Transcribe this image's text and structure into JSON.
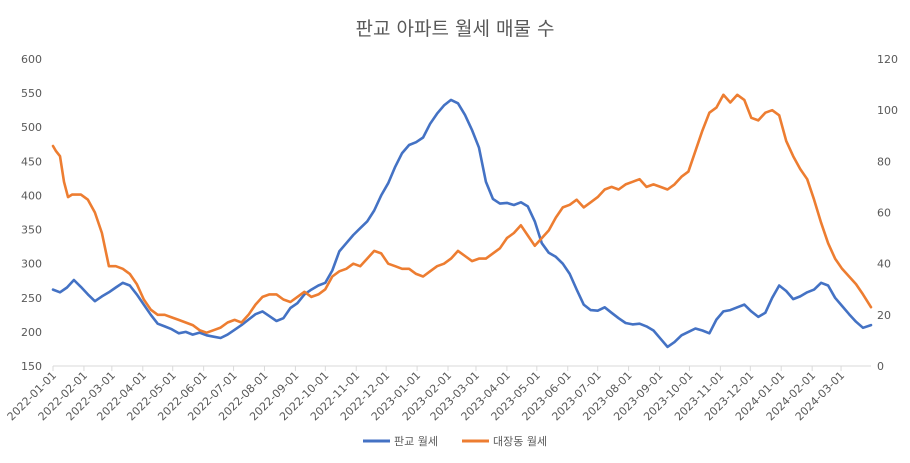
{
  "chart_data": {
    "type": "line",
    "title": "판교 아파트 월세 매물 수",
    "x_start": "2022-01-01",
    "x_end": "2024-03-31",
    "x_tick_labels": [
      "2022-01-01",
      "2022-02-01",
      "2022-03-01",
      "2022-04-01",
      "2022-05-01",
      "2022-06-01",
      "2022-07-01",
      "2022-08-01",
      "2022-09-01",
      "2022-10-01",
      "2022-11-01",
      "2022-12-01",
      "2023-01-01",
      "2023-02-01",
      "2023-03-01",
      "2023-04-01",
      "2023-05-01",
      "2023-06-01",
      "2023-07-01",
      "2023-08-01",
      "2023-09-01",
      "2023-10-01",
      "2023-11-01",
      "2023-12-01",
      "2024-01-01",
      "2024-02-01",
      "2024-03-01"
    ],
    "y_left": {
      "min": 150,
      "max": 600,
      "ticks": [
        150,
        200,
        250,
        300,
        350,
        400,
        450,
        500,
        550,
        600
      ]
    },
    "y_right": {
      "min": 0,
      "max": 120,
      "ticks": [
        0,
        20,
        40,
        60,
        80,
        100,
        120
      ]
    },
    "grid": false,
    "legend_position": "bottom",
    "series": [
      {
        "name": "판교 월세",
        "axis": "left",
        "color": "#4472C4",
        "points": [
          [
            "2022-01-01",
            262
          ],
          [
            "2022-01-08",
            258
          ],
          [
            "2022-01-15",
            265
          ],
          [
            "2022-01-22",
            276
          ],
          [
            "2022-01-29",
            266
          ],
          [
            "2022-02-05",
            255
          ],
          [
            "2022-02-12",
            245
          ],
          [
            "2022-02-19",
            252
          ],
          [
            "2022-02-26",
            258
          ],
          [
            "2022-03-05",
            265
          ],
          [
            "2022-03-12",
            272
          ],
          [
            "2022-03-19",
            268
          ],
          [
            "2022-03-26",
            255
          ],
          [
            "2022-04-02",
            240
          ],
          [
            "2022-04-09",
            225
          ],
          [
            "2022-04-16",
            212
          ],
          [
            "2022-04-23",
            208
          ],
          [
            "2022-04-30",
            204
          ],
          [
            "2022-05-07",
            198
          ],
          [
            "2022-05-14",
            200
          ],
          [
            "2022-05-21",
            196
          ],
          [
            "2022-05-28",
            199
          ],
          [
            "2022-06-04",
            195
          ],
          [
            "2022-06-11",
            193
          ],
          [
            "2022-06-18",
            191
          ],
          [
            "2022-06-25",
            196
          ],
          [
            "2022-07-02",
            203
          ],
          [
            "2022-07-09",
            210
          ],
          [
            "2022-07-16",
            218
          ],
          [
            "2022-07-23",
            226
          ],
          [
            "2022-07-30",
            230
          ],
          [
            "2022-08-06",
            223
          ],
          [
            "2022-08-13",
            216
          ],
          [
            "2022-08-20",
            220
          ],
          [
            "2022-08-27",
            235
          ],
          [
            "2022-09-03",
            242
          ],
          [
            "2022-09-10",
            255
          ],
          [
            "2022-09-17",
            262
          ],
          [
            "2022-09-24",
            268
          ],
          [
            "2022-10-01",
            272
          ],
          [
            "2022-10-08",
            290
          ],
          [
            "2022-10-15",
            318
          ],
          [
            "2022-10-22",
            330
          ],
          [
            "2022-10-29",
            342
          ],
          [
            "2022-11-05",
            352
          ],
          [
            "2022-11-12",
            362
          ],
          [
            "2022-11-19",
            378
          ],
          [
            "2022-11-26",
            400
          ],
          [
            "2022-12-03",
            418
          ],
          [
            "2022-12-10",
            442
          ],
          [
            "2022-12-17",
            462
          ],
          [
            "2022-12-24",
            474
          ],
          [
            "2022-12-31",
            478
          ],
          [
            "2023-01-07",
            485
          ],
          [
            "2023-01-14",
            505
          ],
          [
            "2023-01-21",
            520
          ],
          [
            "2023-01-28",
            532
          ],
          [
            "2023-02-04",
            540
          ],
          [
            "2023-02-11",
            535
          ],
          [
            "2023-02-18",
            518
          ],
          [
            "2023-02-25",
            496
          ],
          [
            "2023-03-04",
            470
          ],
          [
            "2023-03-11",
            420
          ],
          [
            "2023-03-18",
            395
          ],
          [
            "2023-03-25",
            388
          ],
          [
            "2023-04-01",
            389
          ],
          [
            "2023-04-08",
            386
          ],
          [
            "2023-04-15",
            390
          ],
          [
            "2023-04-22",
            384
          ],
          [
            "2023-04-29",
            362
          ],
          [
            "2023-05-06",
            330
          ],
          [
            "2023-05-13",
            316
          ],
          [
            "2023-05-20",
            310
          ],
          [
            "2023-05-27",
            300
          ],
          [
            "2023-06-03",
            285
          ],
          [
            "2023-06-10",
            262
          ],
          [
            "2023-06-17",
            240
          ],
          [
            "2023-06-24",
            232
          ],
          [
            "2023-07-01",
            231
          ],
          [
            "2023-07-08",
            236
          ],
          [
            "2023-07-15",
            228
          ],
          [
            "2023-07-22",
            220
          ],
          [
            "2023-07-29",
            213
          ],
          [
            "2023-08-05",
            211
          ],
          [
            "2023-08-12",
            212
          ],
          [
            "2023-08-19",
            208
          ],
          [
            "2023-08-26",
            202
          ],
          [
            "2023-09-02",
            190
          ],
          [
            "2023-09-09",
            178
          ],
          [
            "2023-09-16",
            185
          ],
          [
            "2023-09-23",
            195
          ],
          [
            "2023-09-30",
            200
          ],
          [
            "2023-10-07",
            205
          ],
          [
            "2023-10-14",
            202
          ],
          [
            "2023-10-21",
            198
          ],
          [
            "2023-10-28",
            218
          ],
          [
            "2023-11-04",
            230
          ],
          [
            "2023-11-11",
            232
          ],
          [
            "2023-11-18",
            236
          ],
          [
            "2023-11-25",
            240
          ],
          [
            "2023-12-02",
            230
          ],
          [
            "2023-12-09",
            222
          ],
          [
            "2023-12-16",
            228
          ],
          [
            "2023-12-23",
            250
          ],
          [
            "2023-12-30",
            268
          ],
          [
            "2024-01-06",
            260
          ],
          [
            "2024-01-13",
            248
          ],
          [
            "2024-01-20",
            252
          ],
          [
            "2024-01-27",
            258
          ],
          [
            "2024-02-03",
            262
          ],
          [
            "2024-02-10",
            272
          ],
          [
            "2024-02-17",
            268
          ],
          [
            "2024-02-24",
            250
          ],
          [
            "2024-03-02",
            238
          ],
          [
            "2024-03-09",
            226
          ],
          [
            "2024-03-16",
            215
          ],
          [
            "2024-03-23",
            206
          ],
          [
            "2024-03-31",
            210
          ]
        ]
      },
      {
        "name": "대장동 월세",
        "axis": "right",
        "color": "#ED7D31",
        "points": [
          [
            "2022-01-01",
            86
          ],
          [
            "2022-01-04",
            84
          ],
          [
            "2022-01-08",
            82
          ],
          [
            "2022-01-12",
            72
          ],
          [
            "2022-01-16",
            66
          ],
          [
            "2022-01-20",
            67
          ],
          [
            "2022-01-29",
            67
          ],
          [
            "2022-02-05",
            65
          ],
          [
            "2022-02-12",
            60
          ],
          [
            "2022-02-19",
            52
          ],
          [
            "2022-02-26",
            39
          ],
          [
            "2022-03-05",
            39
          ],
          [
            "2022-03-12",
            38
          ],
          [
            "2022-03-19",
            36
          ],
          [
            "2022-03-26",
            32
          ],
          [
            "2022-04-02",
            26
          ],
          [
            "2022-04-09",
            22
          ],
          [
            "2022-04-16",
            20
          ],
          [
            "2022-04-23",
            20
          ],
          [
            "2022-04-30",
            19
          ],
          [
            "2022-05-07",
            18
          ],
          [
            "2022-05-14",
            17
          ],
          [
            "2022-05-21",
            16
          ],
          [
            "2022-05-28",
            14
          ],
          [
            "2022-06-04",
            13
          ],
          [
            "2022-06-11",
            14
          ],
          [
            "2022-06-18",
            15
          ],
          [
            "2022-06-25",
            17
          ],
          [
            "2022-07-02",
            18
          ],
          [
            "2022-07-09",
            17
          ],
          [
            "2022-07-16",
            20
          ],
          [
            "2022-07-23",
            24
          ],
          [
            "2022-07-30",
            27
          ],
          [
            "2022-08-06",
            28
          ],
          [
            "2022-08-13",
            28
          ],
          [
            "2022-08-20",
            26
          ],
          [
            "2022-08-27",
            25
          ],
          [
            "2022-09-03",
            27
          ],
          [
            "2022-09-10",
            29
          ],
          [
            "2022-09-17",
            27
          ],
          [
            "2022-09-24",
            28
          ],
          [
            "2022-10-01",
            30
          ],
          [
            "2022-10-08",
            35
          ],
          [
            "2022-10-15",
            37
          ],
          [
            "2022-10-22",
            38
          ],
          [
            "2022-10-29",
            40
          ],
          [
            "2022-11-05",
            39
          ],
          [
            "2022-11-12",
            42
          ],
          [
            "2022-11-19",
            45
          ],
          [
            "2022-11-26",
            44
          ],
          [
            "2022-12-03",
            40
          ],
          [
            "2022-12-10",
            39
          ],
          [
            "2022-12-17",
            38
          ],
          [
            "2022-12-24",
            38
          ],
          [
            "2022-12-31",
            36
          ],
          [
            "2023-01-07",
            35
          ],
          [
            "2023-01-14",
            37
          ],
          [
            "2023-01-21",
            39
          ],
          [
            "2023-01-28",
            40
          ],
          [
            "2023-02-04",
            42
          ],
          [
            "2023-02-11",
            45
          ],
          [
            "2023-02-18",
            43
          ],
          [
            "2023-02-25",
            41
          ],
          [
            "2023-03-04",
            42
          ],
          [
            "2023-03-11",
            42
          ],
          [
            "2023-03-18",
            44
          ],
          [
            "2023-03-25",
            46
          ],
          [
            "2023-04-01",
            50
          ],
          [
            "2023-04-08",
            52
          ],
          [
            "2023-04-15",
            55
          ],
          [
            "2023-04-22",
            51
          ],
          [
            "2023-04-29",
            47
          ],
          [
            "2023-05-06",
            50
          ],
          [
            "2023-05-13",
            53
          ],
          [
            "2023-05-20",
            58
          ],
          [
            "2023-05-27",
            62
          ],
          [
            "2023-06-03",
            63
          ],
          [
            "2023-06-10",
            65
          ],
          [
            "2023-06-17",
            62
          ],
          [
            "2023-06-24",
            64
          ],
          [
            "2023-07-01",
            66
          ],
          [
            "2023-07-08",
            69
          ],
          [
            "2023-07-15",
            70
          ],
          [
            "2023-07-22",
            69
          ],
          [
            "2023-07-29",
            71
          ],
          [
            "2023-08-05",
            72
          ],
          [
            "2023-08-12",
            73
          ],
          [
            "2023-08-19",
            70
          ],
          [
            "2023-08-26",
            71
          ],
          [
            "2023-09-02",
            70
          ],
          [
            "2023-09-09",
            69
          ],
          [
            "2023-09-16",
            71
          ],
          [
            "2023-09-23",
            74
          ],
          [
            "2023-09-30",
            76
          ],
          [
            "2023-10-07",
            84
          ],
          [
            "2023-10-14",
            92
          ],
          [
            "2023-10-21",
            99
          ],
          [
            "2023-10-28",
            101
          ],
          [
            "2023-11-04",
            106
          ],
          [
            "2023-11-11",
            103
          ],
          [
            "2023-11-18",
            106
          ],
          [
            "2023-11-25",
            104
          ],
          [
            "2023-12-02",
            97
          ],
          [
            "2023-12-09",
            96
          ],
          [
            "2023-12-16",
            99
          ],
          [
            "2023-12-23",
            100
          ],
          [
            "2023-12-30",
            98
          ],
          [
            "2024-01-06",
            88
          ],
          [
            "2024-01-13",
            82
          ],
          [
            "2024-01-20",
            77
          ],
          [
            "2024-01-27",
            73
          ],
          [
            "2024-02-03",
            65
          ],
          [
            "2024-02-10",
            56
          ],
          [
            "2024-02-17",
            48
          ],
          [
            "2024-02-24",
            42
          ],
          [
            "2024-03-02",
            38
          ],
          [
            "2024-03-09",
            35
          ],
          [
            "2024-03-16",
            32
          ],
          [
            "2024-03-23",
            28
          ],
          [
            "2024-03-31",
            23
          ]
        ]
      }
    ]
  }
}
